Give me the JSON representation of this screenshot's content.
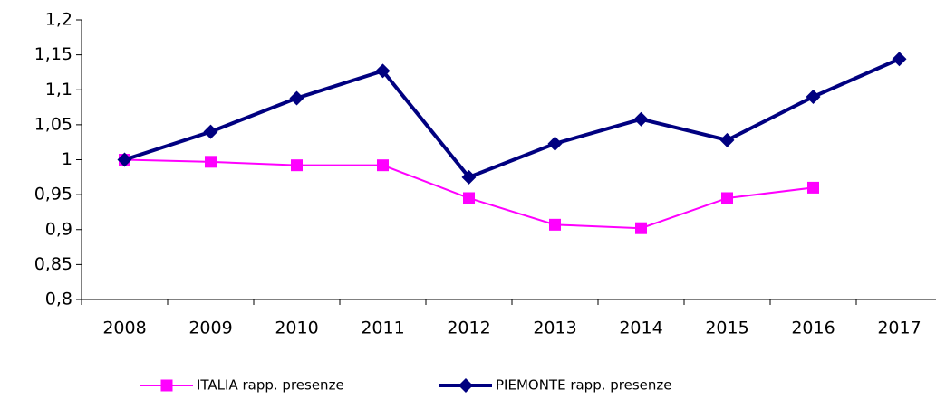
{
  "chart_data": {
    "type": "line",
    "categories": [
      "2008",
      "2009",
      "2010",
      "2011",
      "2012",
      "2013",
      "2014",
      "2015",
      "2016",
      "2017"
    ],
    "series": [
      {
        "name": "ITALIA rapp. presenze",
        "color": "#ff00ff",
        "marker": "square",
        "values": [
          1.0,
          0.997,
          0.992,
          0.992,
          0.945,
          0.907,
          0.902,
          0.945,
          0.96,
          null
        ]
      },
      {
        "name": "PIEMONTE rapp. presenze",
        "color": "#000080",
        "marker": "diamond",
        "values": [
          1.0,
          1.04,
          1.088,
          1.127,
          0.975,
          1.023,
          1.058,
          1.028,
          1.09,
          1.144
        ]
      }
    ],
    "ylim": [
      0.8,
      1.2
    ],
    "yticks": [
      {
        "value": 0.8,
        "label": "0,8"
      },
      {
        "value": 0.85,
        "label": "0,85"
      },
      {
        "value": 0.9,
        "label": "0,9"
      },
      {
        "value": 0.95,
        "label": "0,95"
      },
      1,
      {
        "value": 1.05,
        "label": "1,05"
      },
      {
        "value": 1.1,
        "label": "1,1"
      },
      {
        "value": 1.15,
        "label": "1,15"
      },
      {
        "value": 1.2,
        "label": "1,2"
      }
    ],
    "grid": false,
    "legend": "bottom"
  }
}
